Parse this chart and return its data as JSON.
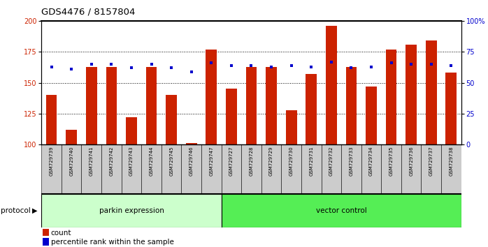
{
  "title": "GDS4476 / 8157804",
  "samples": [
    "GSM729739",
    "GSM729740",
    "GSM729741",
    "GSM729742",
    "GSM729743",
    "GSM729744",
    "GSM729745",
    "GSM729746",
    "GSM729747",
    "GSM729727",
    "GSM729728",
    "GSM729729",
    "GSM729730",
    "GSM729731",
    "GSM729732",
    "GSM729733",
    "GSM729734",
    "GSM729735",
    "GSM729736",
    "GSM729737",
    "GSM729738"
  ],
  "counts": [
    140,
    112,
    163,
    163,
    122,
    163,
    140,
    101,
    177,
    145,
    163,
    163,
    128,
    157,
    196,
    163,
    147,
    177,
    181,
    184,
    158
  ],
  "percentile_ranks": [
    63,
    61,
    65,
    65,
    62,
    65,
    62,
    59,
    66,
    64,
    64,
    63,
    64,
    63,
    67,
    62,
    63,
    66,
    65,
    65,
    64
  ],
  "group1_count": 9,
  "group2_count": 12,
  "group1_label": "parkin expression",
  "group2_label": "vector control",
  "group1_color": "#ccffcc",
  "group2_color": "#55ee55",
  "bar_color": "#cc2200",
  "dot_color": "#0000cc",
  "ylim_left": [
    100,
    200
  ],
  "ylim_right": [
    0,
    100
  ],
  "yticks_left": [
    100,
    125,
    150,
    175,
    200
  ],
  "yticks_right": [
    0,
    25,
    50,
    75,
    100
  ],
  "legend_count": "count",
  "legend_pct": "percentile rank within the sample",
  "protocol_label": "protocol"
}
